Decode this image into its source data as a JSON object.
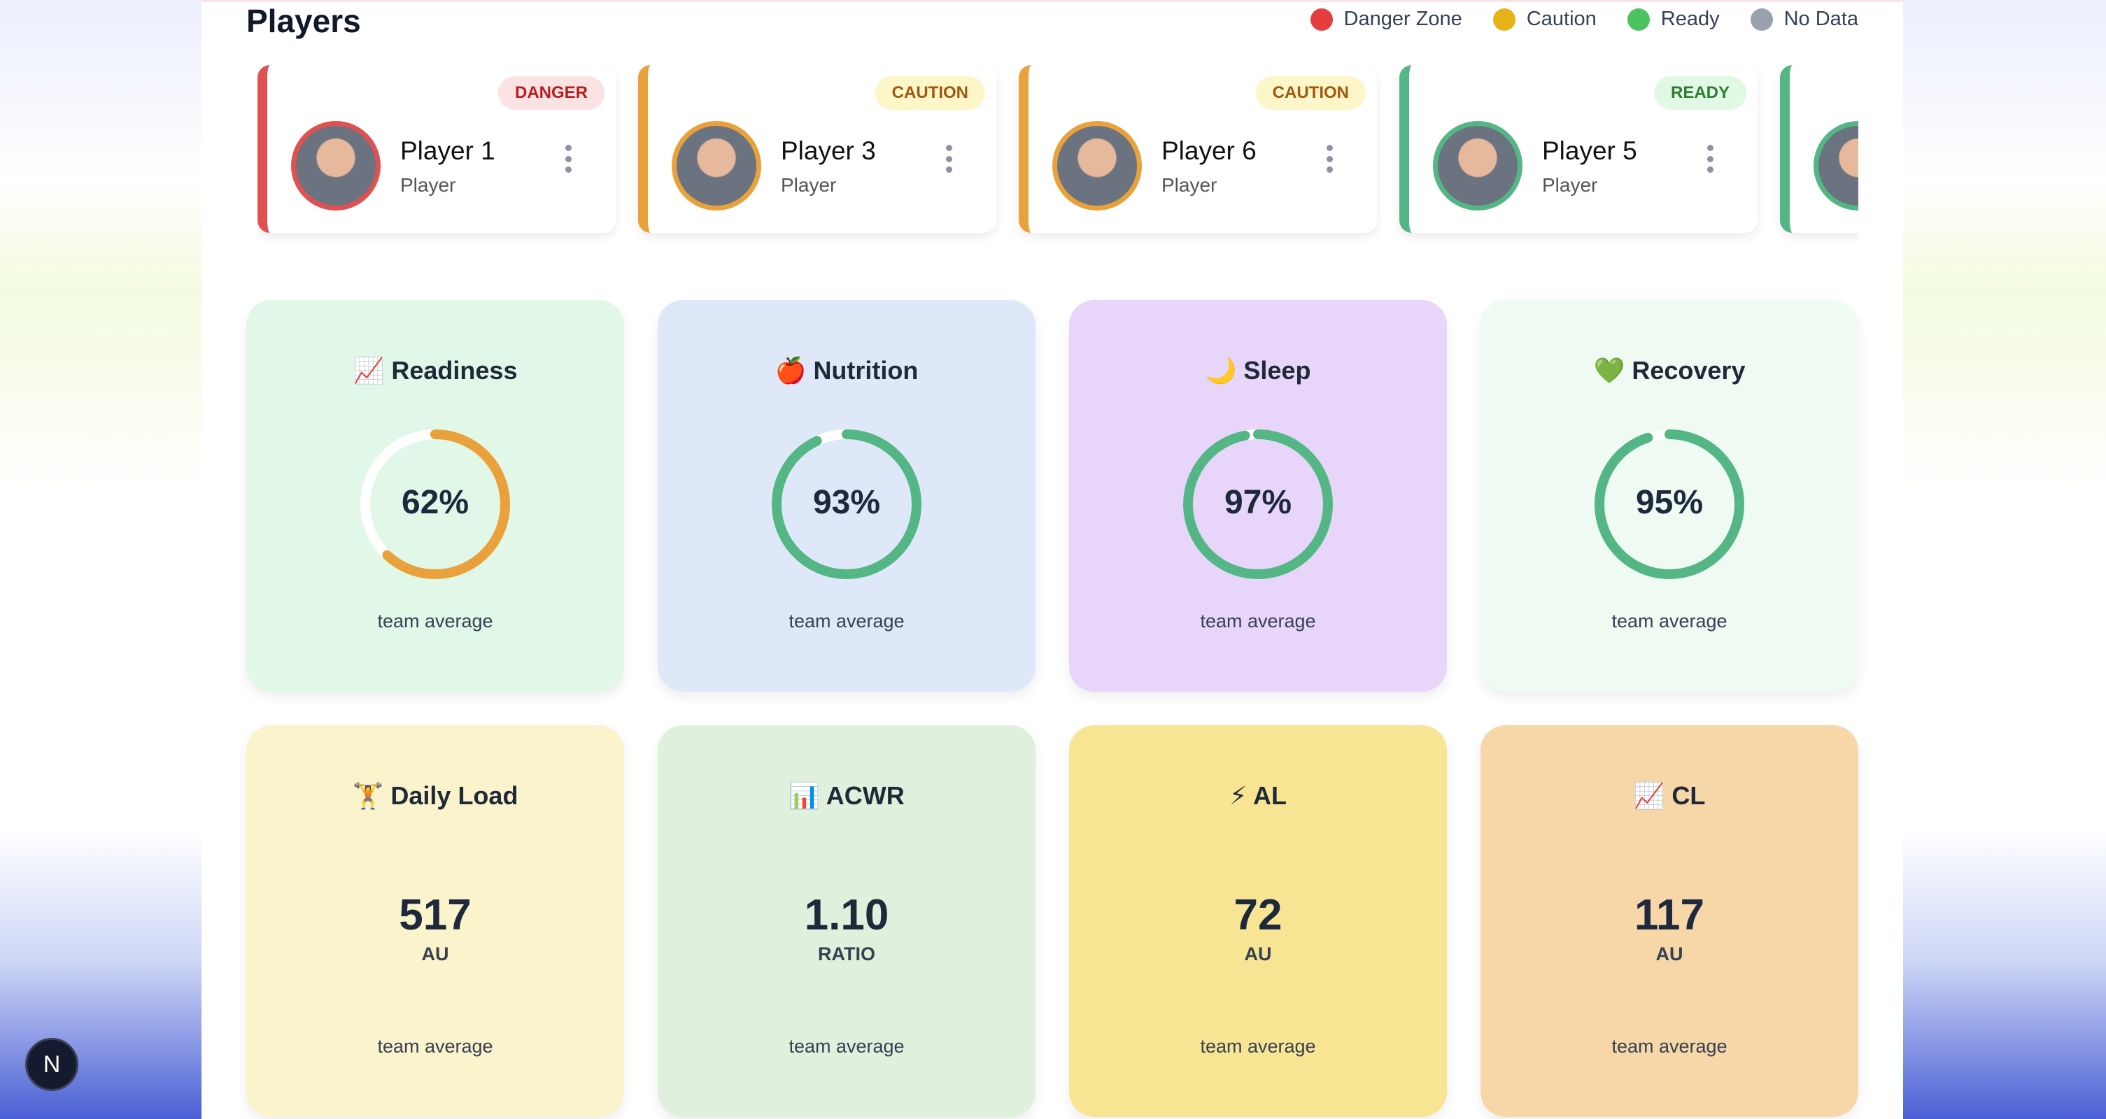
{
  "header": {
    "title": "Players"
  },
  "legend": [
    {
      "label": "Danger Zone",
      "color": "#e53e3e"
    },
    {
      "label": "Caution",
      "color": "#e6b316"
    },
    {
      "label": "Ready",
      "color": "#4cc35e"
    },
    {
      "label": "No Data",
      "color": "#9aa0ac"
    }
  ],
  "players": [
    {
      "name": "Player 1",
      "role": "Player",
      "status": "DANGER",
      "color": "#e05252",
      "badge_bg": "#fbe2e3",
      "badge_fg": "#b91c1c"
    },
    {
      "name": "Player 3",
      "role": "Player",
      "status": "CAUTION",
      "color": "#e9a23b",
      "badge_bg": "#fdf6c8",
      "badge_fg": "#a1580e"
    },
    {
      "name": "Player 6",
      "role": "Player",
      "status": "CAUTION",
      "color": "#e9a23b",
      "badge_bg": "#fdf6c8",
      "badge_fg": "#a1580e"
    },
    {
      "name": "Player 5",
      "role": "Player",
      "status": "READY",
      "color": "#55b685",
      "badge_bg": "#e1f8e5",
      "badge_fg": "#2e7d32"
    },
    {
      "name": "",
      "role": "",
      "status": "",
      "color": "#55b685",
      "badge_bg": "",
      "badge_fg": ""
    }
  ],
  "metrics": [
    {
      "icon": "📈",
      "title": "Readiness",
      "value": "62%",
      "percent": 62,
      "ring_color": "#e9a23b",
      "sub": "team average",
      "bg": "#e1f7e8"
    },
    {
      "icon": "🍎",
      "title": "Nutrition",
      "value": "93%",
      "percent": 93,
      "ring_color": "#55b685",
      "sub": "team average",
      "bg": "#dfe8f9"
    },
    {
      "icon": "🌙",
      "title": "Sleep",
      "value": "97%",
      "percent": 97,
      "ring_color": "#55b685",
      "sub": "team average",
      "bg": "#e7d6f9"
    },
    {
      "icon": "💚",
      "title": "Recovery",
      "value": "95%",
      "percent": 95,
      "ring_color": "#55b685",
      "sub": "team average",
      "bg": "#effaf2"
    }
  ],
  "loads": [
    {
      "icon": "🏋️",
      "title": "Daily Load",
      "value": "517",
      "unit": "AU",
      "sub": "team average",
      "bg": "#fbf3cc"
    },
    {
      "icon": "📊",
      "title": "ACWR",
      "value": "1.10",
      "unit": "RATIO",
      "sub": "team average",
      "bg": "#dff1dd"
    },
    {
      "icon": "⚡",
      "title": "AL",
      "value": "72",
      "unit": "AU",
      "sub": "team average",
      "bg": "#f8e594"
    },
    {
      "icon": "📈",
      "title": "CL",
      "value": "117",
      "unit": "AU",
      "sub": "team average",
      "bg": "#f7d6a8"
    }
  ],
  "nextjs_button": {
    "label": "N"
  }
}
